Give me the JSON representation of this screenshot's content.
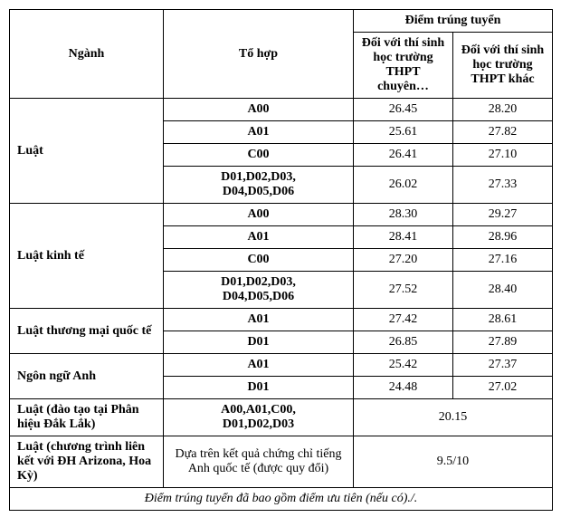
{
  "table": {
    "header": {
      "major": "Ngành",
      "combo": "Tổ hợp",
      "score_group": "Điểm trúng tuyển",
      "score_chuyen": "Đối với thí sinh học trường THPT chuyên…",
      "score_khac": "Đối với thí sinh học trường THPT khác"
    },
    "groups": [
      {
        "major": "Luật",
        "rows": [
          {
            "combo": "A00",
            "bold": true,
            "s1": "26.45",
            "s2": "28.20"
          },
          {
            "combo": "A01",
            "bold": true,
            "s1": "25.61",
            "s2": "27.82"
          },
          {
            "combo": "C00",
            "bold": true,
            "s1": "26.41",
            "s2": "27.10"
          },
          {
            "combo": "D01,D02,D03,\nD04,D05,D06",
            "bold": true,
            "s1": "26.02",
            "s2": "27.33"
          }
        ]
      },
      {
        "major": "Luật kinh tế",
        "rows": [
          {
            "combo": "A00",
            "bold": true,
            "s1": "28.30",
            "s2": "29.27"
          },
          {
            "combo": "A01",
            "bold": true,
            "s1": "28.41",
            "s2": "28.96"
          },
          {
            "combo": "C00",
            "bold": true,
            "s1": "27.20",
            "s2": "27.16"
          },
          {
            "combo": "D01,D02,D03,\nD04,D05,D06",
            "bold": true,
            "s1": "27.52",
            "s2": "28.40"
          }
        ]
      },
      {
        "major": "Luật thương mại quốc tế",
        "rows": [
          {
            "combo": "A01",
            "bold": true,
            "s1": "27.42",
            "s2": "28.61"
          },
          {
            "combo": "D01",
            "bold": true,
            "s1": "26.85",
            "s2": "27.89"
          }
        ]
      },
      {
        "major": "Ngôn ngữ Anh",
        "rows": [
          {
            "combo": "A01",
            "bold": true,
            "s1": "25.42",
            "s2": "27.37"
          },
          {
            "combo": "D01",
            "bold": true,
            "s1": "24.48",
            "s2": "27.02"
          }
        ]
      }
    ],
    "merged_rows": [
      {
        "major": "Luật (đào tạo tại Phân hiệu Đắk Lắk)",
        "combo": "A00,A01,C00,\nD01,D02,D03",
        "combo_bold": true,
        "score": "20.15"
      },
      {
        "major": "Luật (chương trình liên kết với ĐH Arizona, Hoa Kỳ)",
        "combo": "Dựa trên kết quả chứng chỉ tiếng Anh quốc tế (được quy đổi)",
        "combo_bold": false,
        "score": "9.5/10"
      }
    ],
    "footnote": "Điểm trúng tuyển đã bao gồm điểm ưu tiên (nếu có)./."
  },
  "style": {
    "font_family": "Times New Roman",
    "font_size_pt": 11,
    "border_color": "#000000",
    "background": "#ffffff",
    "text_color": "#000000"
  }
}
